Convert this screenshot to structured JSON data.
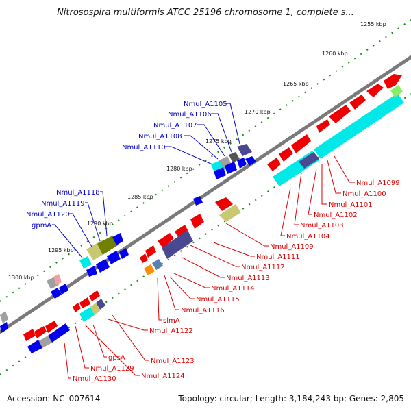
{
  "title": "Nitrosospira multiformis ATCC 25196 chromosome 1, complete s...",
  "accession": "Accession: NC_007614",
  "topology": "Topology: circular; Length: 3,184,243 bp; Genes: 2,805",
  "kbp_labels": [
    "1255 kbp",
    "1260 kbp",
    "1265 kbp",
    "1270 kbp",
    "1275 kbp",
    "1280 kbp",
    "1285 kbp",
    "1290 kbp",
    "1295 kbp",
    "1300 kbp"
  ],
  "labels_forward": [
    "Nmul_A1105",
    "Nmul_A1106",
    "Nmul_A1107",
    "Nmul_A1108",
    "Nmul_A1110",
    "Nmul_A1118",
    "Nmul_A1119",
    "Nmul_A1120",
    "gpmA"
  ],
  "labels_reverse": [
    "Nmul_A1099",
    "Nmul_A1100",
    "Nmul_A1101",
    "Nmul_A1102",
    "Nmul_A1103",
    "Nmul_A1104",
    "Nmul_A1109",
    "Nmul_A1111",
    "Nmul_A1112",
    "Nmul_A1113",
    "Nmul_A1114",
    "Nmul_A1115",
    "Nmul_A1116",
    "slmA",
    "Nmul_A1122",
    "Nmul_A1123",
    "gpsA",
    "Nmul_A1124",
    "Nmul_A1129",
    "Nmul_A1130"
  ],
  "colors": {
    "forward_gene": "#0000ee",
    "reverse_gene": "#ee0000",
    "backbone": "#808080",
    "tick": "#008000",
    "cyan_block": "#00e8e8",
    "navy_block": "#4a4890",
    "olive_block": "#c8c870",
    "dark_olive_block": "#708000",
    "orange_block": "#ff8c00",
    "steel_block": "#5880b0",
    "pink_block": "#f0a0a0",
    "gray_block": "#a0a0a0"
  }
}
